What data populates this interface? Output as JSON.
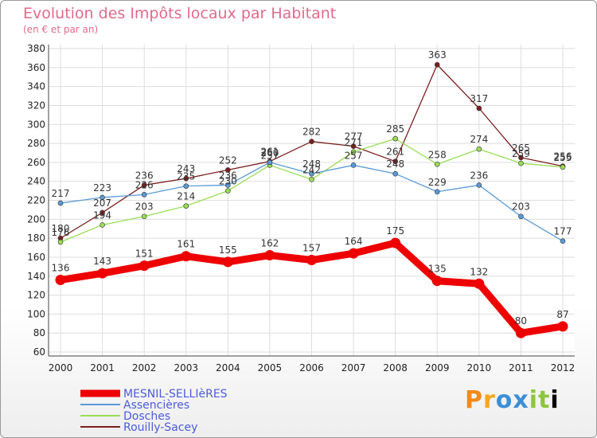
{
  "chart_data": {
    "type": "line",
    "title": "Evolution des Impôts locaux par Habitant",
    "subtitle": "(en € et par an)",
    "categories": [
      "2000",
      "2001",
      "2002",
      "2003",
      "2004",
      "2005",
      "2006",
      "2007",
      "2008",
      "2009",
      "2010",
      "2011",
      "2012"
    ],
    "y_ticks": [
      60,
      80,
      100,
      120,
      140,
      160,
      180,
      200,
      220,
      240,
      260,
      280,
      300,
      320,
      340,
      360,
      380
    ],
    "ylim": [
      60,
      380
    ],
    "grid": true,
    "legend_position": "bottom-left",
    "series": [
      {
        "name": "MESNIL-SELLIèRES",
        "color": "#ee0000",
        "values": [
          136,
          143,
          151,
          161,
          155,
          162,
          157,
          164,
          175,
          135,
          132,
          80,
          87
        ]
      },
      {
        "name": "Assencières",
        "color": "#5b9bd5",
        "values": [
          217,
          223,
          226,
          235,
          236,
          260,
          248,
          257,
          248,
          229,
          236,
          203,
          177
        ]
      },
      {
        "name": "Dosches",
        "color": "#99dd55",
        "values": [
          176,
          194,
          203,
          214,
          230,
          257,
          242,
          271,
          285,
          258,
          274,
          259,
          255
        ]
      },
      {
        "name": "Rouilly-Sacey",
        "color": "#7b1f1f",
        "values": [
          180,
          207,
          236,
          243,
          252,
          261,
          282,
          277,
          261,
          363,
          317,
          265,
          256
        ]
      }
    ]
  },
  "logo_text": [
    "P",
    "r",
    "o",
    "x",
    "i",
    "t",
    "i"
  ]
}
